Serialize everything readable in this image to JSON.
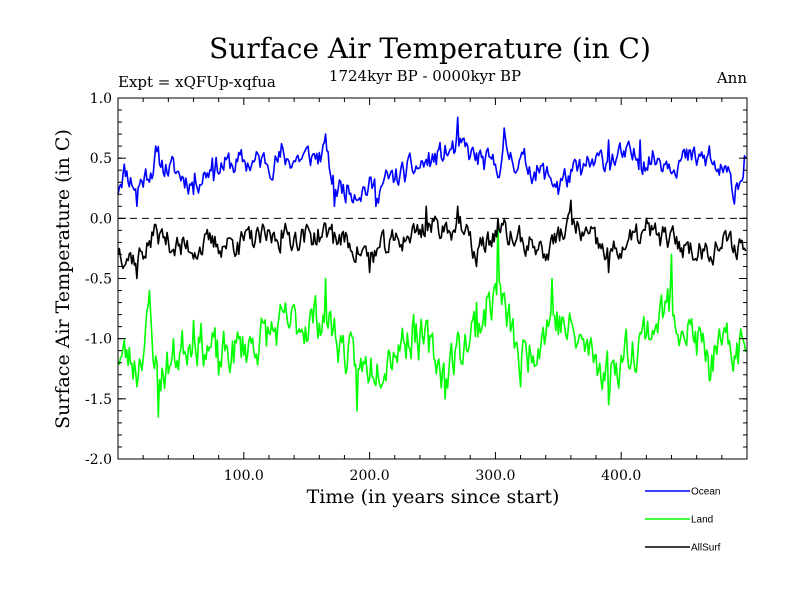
{
  "chart_data": {
    "type": "line",
    "title": "Surface Air Temperature (in C)",
    "subtitle": "1724kyr BP - 0000kyr BP",
    "left_label": "Expt = xQFUp-xqfua",
    "right_label": "Ann",
    "xlabel": "Time (in years since start)",
    "ylabel": "Surface Air Temperature (in C)",
    "xlim": [
      0,
      500
    ],
    "ylim": [
      -2.0,
      1.0
    ],
    "x_ticks": [
      100,
      200,
      300,
      400
    ],
    "x_tick_labels": [
      "100.0",
      "200.0",
      "300.0",
      "400.0"
    ],
    "y_ticks": [
      -2.0,
      -1.5,
      -1.0,
      -0.5,
      0.0,
      0.5,
      1.0
    ],
    "y_tick_labels": [
      "-2.0",
      "-1.5",
      "-1.0",
      "-0.5",
      "0.0",
      "0.5",
      "1.0"
    ],
    "zero_line": 0.0,
    "n_points": 500,
    "series": [
      {
        "name": "Ocean",
        "color": "#0000ff",
        "mean": 0.38,
        "noise": 0.09,
        "seed": 11,
        "anchors": [
          [
            0,
            0.2
          ],
          [
            5,
            0.45
          ],
          [
            15,
            0.1
          ],
          [
            30,
            0.6
          ],
          [
            60,
            0.2
          ],
          [
            75,
            0.5
          ],
          [
            130,
            0.62
          ],
          [
            165,
            0.7
          ],
          [
            172,
            0.1
          ],
          [
            205,
            0.1
          ],
          [
            270,
            0.84
          ],
          [
            300,
            0.45
          ],
          [
            307,
            0.75
          ],
          [
            350,
            0.2
          ],
          [
            390,
            0.65
          ],
          [
            415,
            0.65
          ],
          [
            470,
            0.6
          ],
          [
            490,
            0.12
          ],
          [
            498,
            0.52
          ]
        ]
      },
      {
        "name": "Land",
        "color": "#00ff00",
        "mean": -1.05,
        "noise": 0.16,
        "seed": 23,
        "anchors": [
          [
            0,
            -1.2
          ],
          [
            15,
            -1.4
          ],
          [
            25,
            -0.6
          ],
          [
            32,
            -1.65
          ],
          [
            60,
            -0.85
          ],
          [
            80,
            -1.3
          ],
          [
            130,
            -0.75
          ],
          [
            165,
            -0.5
          ],
          [
            190,
            -1.6
          ],
          [
            235,
            -0.8
          ],
          [
            260,
            -1.5
          ],
          [
            285,
            -0.7
          ],
          [
            302,
            0.0
          ],
          [
            320,
            -1.4
          ],
          [
            345,
            -0.5
          ],
          [
            390,
            -1.55
          ],
          [
            440,
            -0.3
          ],
          [
            470,
            -1.35
          ],
          [
            498,
            -1.05
          ]
        ]
      },
      {
        "name": "AllSurf",
        "color": "#000000",
        "mean": -0.2,
        "noise": 0.09,
        "seed": 37,
        "anchors": [
          [
            0,
            -0.3
          ],
          [
            15,
            -0.5
          ],
          [
            30,
            -0.05
          ],
          [
            50,
            -0.3
          ],
          [
            95,
            -0.2
          ],
          [
            130,
            -0.1
          ],
          [
            170,
            -0.05
          ],
          [
            200,
            -0.45
          ],
          [
            245,
            0.1
          ],
          [
            270,
            0.1
          ],
          [
            285,
            -0.4
          ],
          [
            302,
            0.0
          ],
          [
            340,
            -0.35
          ],
          [
            360,
            0.15
          ],
          [
            390,
            -0.45
          ],
          [
            420,
            0.0
          ],
          [
            460,
            -0.35
          ],
          [
            480,
            -0.25
          ],
          [
            498,
            -0.25
          ]
        ]
      }
    ],
    "legend": [
      {
        "label": "Ocean",
        "color": "#0000ff"
      },
      {
        "label": "Land",
        "color": "#00ff00"
      },
      {
        "label": "AllSurf",
        "color": "#000000"
      }
    ]
  }
}
